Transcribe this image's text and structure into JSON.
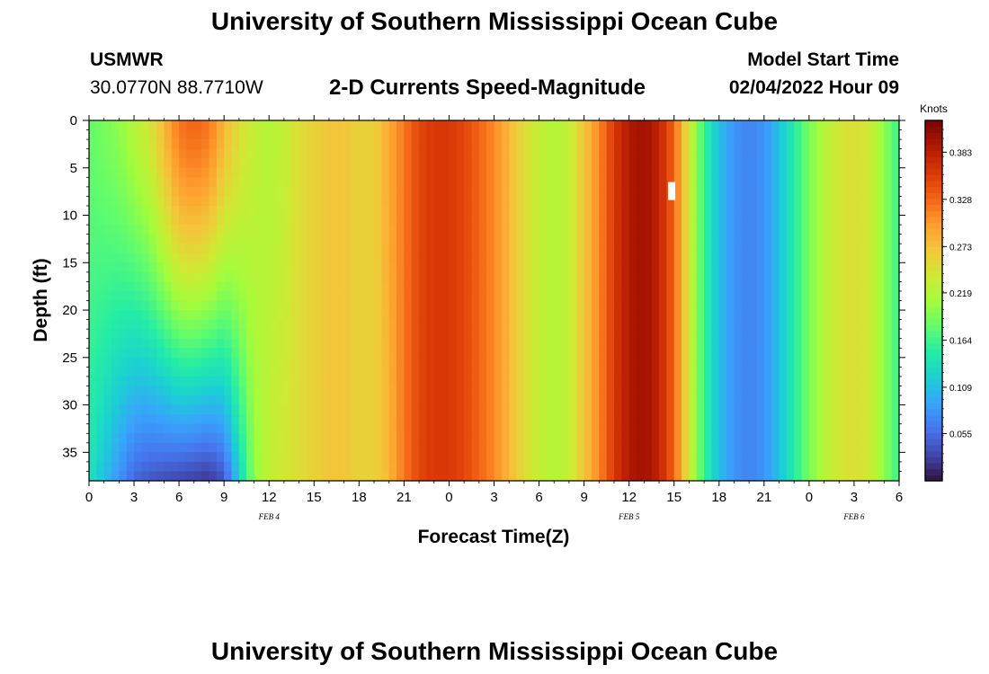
{
  "header": {
    "title": "University of Southern Mississippi Ocean Cube",
    "station": "USMWR",
    "coords": "30.0770N  88.7710W",
    "plot_title": "2-D Currents Speed-Magnitude",
    "model_label": "Model Start Time",
    "model_value": "02/04/2022 Hour 09"
  },
  "footer": {
    "title": "University of Southern Mississippi Ocean Cube"
  },
  "colors": {
    "colormap": [
      "#30123b",
      "#4145ab",
      "#4675ed",
      "#39a2fc",
      "#1bcfd4",
      "#24eca6",
      "#61fc6c",
      "#a4fc3b",
      "#d1e834",
      "#f3c63a",
      "#fe9b2d",
      "#f36315",
      "#d93806",
      "#b11901",
      "#7a0402"
    ]
  },
  "chart_data": {
    "type": "heatmap",
    "title": "2-D Currents Speed-Magnitude",
    "xlabel": "Forecast Time(Z)",
    "ylabel": "Depth (ft)",
    "colorbar_label": "Knots",
    "x_tick_labels": [
      "0",
      "3",
      "6",
      "9",
      "12",
      "15",
      "18",
      "21",
      "0",
      "3",
      "6",
      "9",
      "12",
      "15",
      "18",
      "21",
      "0",
      "3",
      "6"
    ],
    "x_range_hours": [
      0,
      54
    ],
    "date_labels": [
      {
        "label": "FEB 4",
        "hour": 12
      },
      {
        "label": "FEB 5",
        "hour": 36
      },
      {
        "label": "FEB 6",
        "hour": 51
      }
    ],
    "y_range_ft": [
      0,
      38
    ],
    "y_ticks": [
      0,
      5,
      10,
      15,
      20,
      25,
      30,
      35
    ],
    "colorbar_range": [
      0.0,
      0.42
    ],
    "colorbar_ticks": [
      0.055,
      0.109,
      0.164,
      0.219,
      0.273,
      0.328,
      0.383
    ],
    "profile_hours": [
      0,
      1,
      2,
      3,
      4,
      5,
      6,
      7,
      8,
      9,
      10,
      11,
      12,
      13,
      14,
      15,
      16,
      17,
      18,
      19,
      20,
      21,
      22,
      23,
      24,
      25,
      26,
      27,
      28,
      29,
      30,
      31,
      32,
      33,
      34,
      35,
      36,
      37,
      38,
      39,
      40,
      41,
      42,
      43,
      44,
      45,
      46,
      47,
      48,
      49,
      50,
      51,
      52,
      53,
      54
    ],
    "surface_speed_knots": [
      0.18,
      0.19,
      0.2,
      0.22,
      0.24,
      0.28,
      0.32,
      0.33,
      0.32,
      0.28,
      0.25,
      0.23,
      0.22,
      0.23,
      0.25,
      0.26,
      0.27,
      0.27,
      0.26,
      0.26,
      0.29,
      0.32,
      0.35,
      0.36,
      0.36,
      0.35,
      0.33,
      0.31,
      0.28,
      0.25,
      0.23,
      0.22,
      0.23,
      0.27,
      0.31,
      0.36,
      0.39,
      0.4,
      0.38,
      0.33,
      0.24,
      0.16,
      0.11,
      0.08,
      0.07,
      0.08,
      0.11,
      0.15,
      0.19,
      0.22,
      0.24,
      0.25,
      0.24,
      0.2,
      0.16
    ],
    "bottom_speed_knots": [
      0.14,
      0.11,
      0.08,
      0.05,
      0.04,
      0.035,
      0.03,
      0.025,
      0.02,
      0.04,
      0.12,
      0.2,
      0.23,
      0.24,
      0.25,
      0.26,
      0.27,
      0.27,
      0.26,
      0.26,
      0.28,
      0.32,
      0.35,
      0.36,
      0.36,
      0.35,
      0.33,
      0.31,
      0.28,
      0.25,
      0.23,
      0.22,
      0.23,
      0.27,
      0.31,
      0.36,
      0.39,
      0.4,
      0.38,
      0.33,
      0.24,
      0.16,
      0.11,
      0.08,
      0.07,
      0.08,
      0.11,
      0.15,
      0.19,
      0.22,
      0.24,
      0.25,
      0.24,
      0.2,
      0.16
    ]
  }
}
